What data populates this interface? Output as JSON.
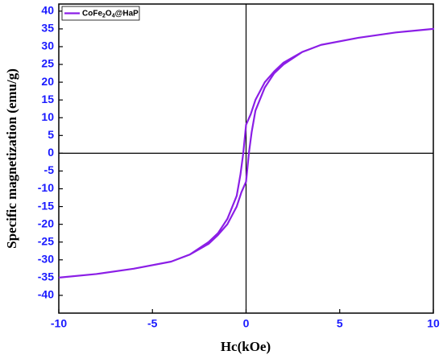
{
  "chart_data": {
    "type": "line",
    "x_label": "Hc(kOe)",
    "y_label": "Specific magnetization (emu/g)",
    "xlim": [
      -10,
      10
    ],
    "ylim": [
      -45,
      42
    ],
    "xticks": [
      -10,
      -5,
      0,
      5,
      10
    ],
    "yticks": [
      -40,
      -35,
      -30,
      -25,
      -20,
      -15,
      -10,
      -5,
      0,
      5,
      10,
      15,
      20,
      25,
      30,
      35,
      40
    ],
    "legend": "upper left",
    "series": [
      {
        "name": "CoFe2O4@HaP",
        "color": "#8b1ee6",
        "x": [
          -10,
          -8,
          -6,
          -4,
          -3,
          -2,
          -1.5,
          -1,
          -0.5,
          -0.25,
          0,
          0.15,
          0.3,
          0.5,
          1,
          1.5,
          2,
          3,
          4,
          6,
          8,
          10,
          8,
          6,
          4,
          3,
          2,
          1.5,
          1,
          0.5,
          0.25,
          0,
          -0.15,
          -0.3,
          -0.5,
          -1,
          -1.5,
          -2,
          -3,
          -4,
          -6,
          -8,
          -10
        ],
        "values": [
          -35,
          -34,
          -32.5,
          -30.5,
          -28.5,
          -25.5,
          -23,
          -20,
          -15,
          -11,
          -8,
          0,
          6,
          12,
          18.5,
          22.5,
          25,
          28.5,
          30.5,
          32.5,
          34,
          35,
          34,
          32.5,
          30.5,
          28.5,
          25.5,
          23,
          20,
          15,
          11,
          8,
          0,
          -6,
          -12,
          -18.5,
          -22.5,
          -25,
          -28.5,
          -30.5,
          -32.5,
          -34,
          -35
        ]
      }
    ]
  }
}
